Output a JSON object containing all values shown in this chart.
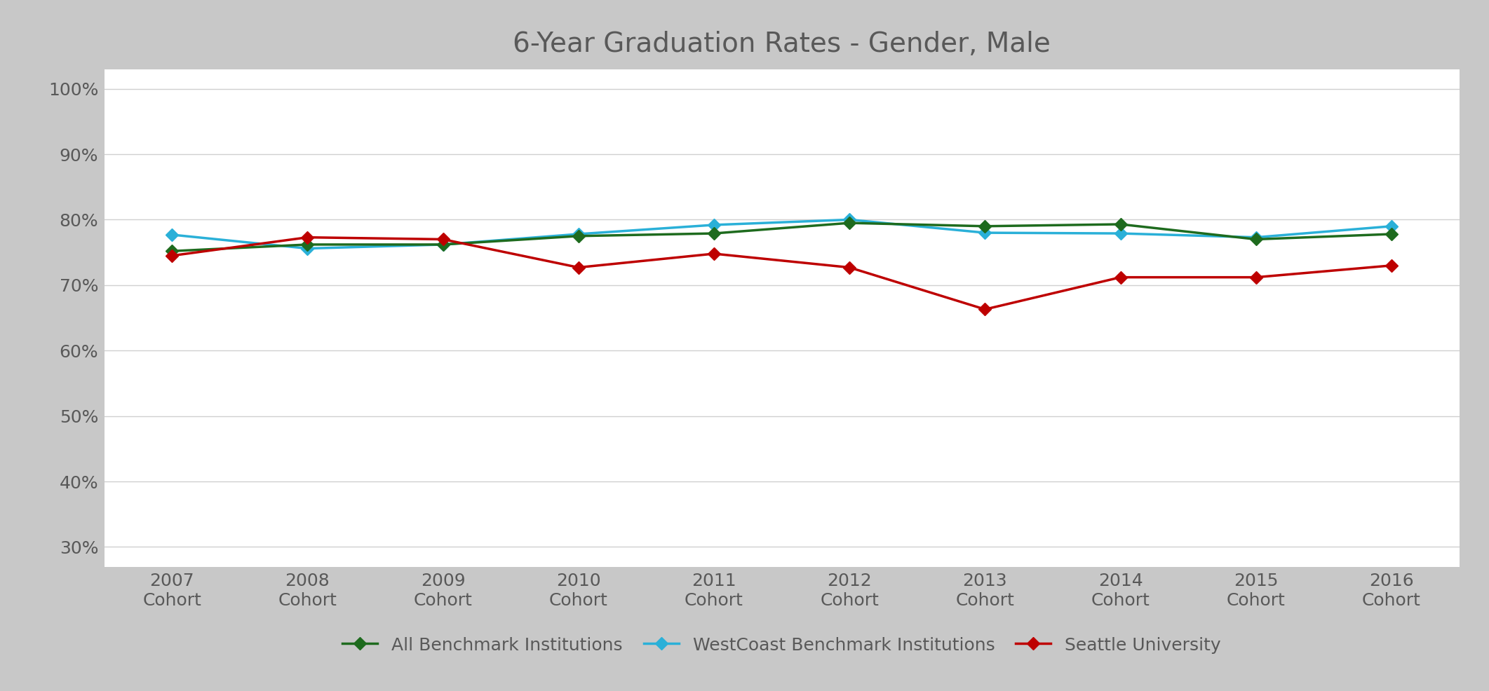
{
  "title": "6-Year Graduation Rates - Gender, Male",
  "cohorts": [
    "2007\nCohort",
    "2008\nCohort",
    "2009\nCohort",
    "2010\nCohort",
    "2011\nCohort",
    "2012\nCohort",
    "2013\nCohort",
    "2014\nCohort",
    "2015\nCohort",
    "2016\nCohort"
  ],
  "x_values": [
    0,
    1,
    2,
    3,
    4,
    5,
    6,
    7,
    8,
    9
  ],
  "all_benchmark": [
    0.752,
    0.762,
    0.762,
    0.775,
    0.779,
    0.795,
    0.79,
    0.793,
    0.77,
    0.778
  ],
  "westcoast_benchmark": [
    0.777,
    0.756,
    0.762,
    0.778,
    0.792,
    0.8,
    0.78,
    0.779,
    0.773,
    0.79
  ],
  "seattle_university": [
    0.745,
    0.773,
    0.77,
    0.727,
    0.748,
    0.727,
    0.663,
    0.712,
    0.712,
    0.73
  ],
  "all_benchmark_color": "#1e6b1e",
  "westcoast_benchmark_color": "#2ab0d8",
  "seattle_university_color": "#be0000",
  "outer_background_color": "#c8c8c8",
  "inner_background_color": "#ffffff",
  "title_color": "#595959",
  "tick_color": "#595959",
  "title_fontsize": 28,
  "tick_fontsize": 18,
  "legend_fontsize": 18,
  "ylim_min": 0.27,
  "ylim_max": 1.03,
  "yticks": [
    0.3,
    0.4,
    0.5,
    0.6,
    0.7,
    0.8,
    0.9,
    1.0
  ],
  "ytick_labels": [
    "30%",
    "40%",
    "50%",
    "60%",
    "70%",
    "80%",
    "90%",
    "100%"
  ],
  "line_width": 2.5,
  "marker_size": 9,
  "legend_labels": [
    "All Benchmark Institutions",
    "WestCoast Benchmark Institutions",
    "Seattle University"
  ],
  "grid_color": "#d0d0d0",
  "figwidth": 21.23,
  "figheight": 9.86,
  "dpi": 100
}
